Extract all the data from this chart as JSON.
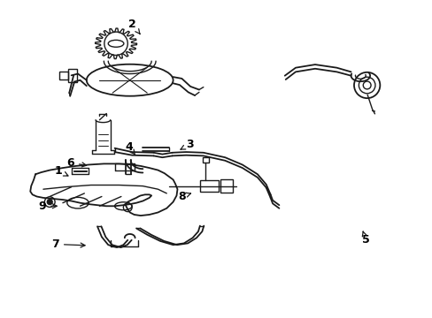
{
  "background_color": "#ffffff",
  "line_color": "#1a1a1a",
  "fig_width": 4.89,
  "fig_height": 3.6,
  "dpi": 100,
  "label_fontsize": 9,
  "labels": {
    "1": {
      "txt": [
        0.135,
        0.538
      ],
      "pt": [
        0.165,
        0.558
      ]
    },
    "2": {
      "txt": [
        0.305,
        0.075
      ],
      "pt": [
        0.328,
        0.115
      ]
    },
    "3": {
      "txt": [
        0.438,
        0.455
      ],
      "pt": [
        0.41,
        0.475
      ]
    },
    "4": {
      "txt": [
        0.298,
        0.462
      ],
      "pt": [
        0.313,
        0.488
      ]
    },
    "5": {
      "txt": [
        0.845,
        0.755
      ],
      "pt": [
        0.838,
        0.725
      ]
    },
    "6": {
      "txt": [
        0.163,
        0.512
      ],
      "pt": [
        0.208,
        0.522
      ]
    },
    "7": {
      "txt": [
        0.128,
        0.768
      ],
      "pt": [
        0.205,
        0.772
      ]
    },
    "8": {
      "txt": [
        0.42,
        0.618
      ],
      "pt": [
        0.443,
        0.607
      ]
    },
    "9": {
      "txt": [
        0.098,
        0.648
      ],
      "pt": [
        0.14,
        0.648
      ]
    }
  }
}
